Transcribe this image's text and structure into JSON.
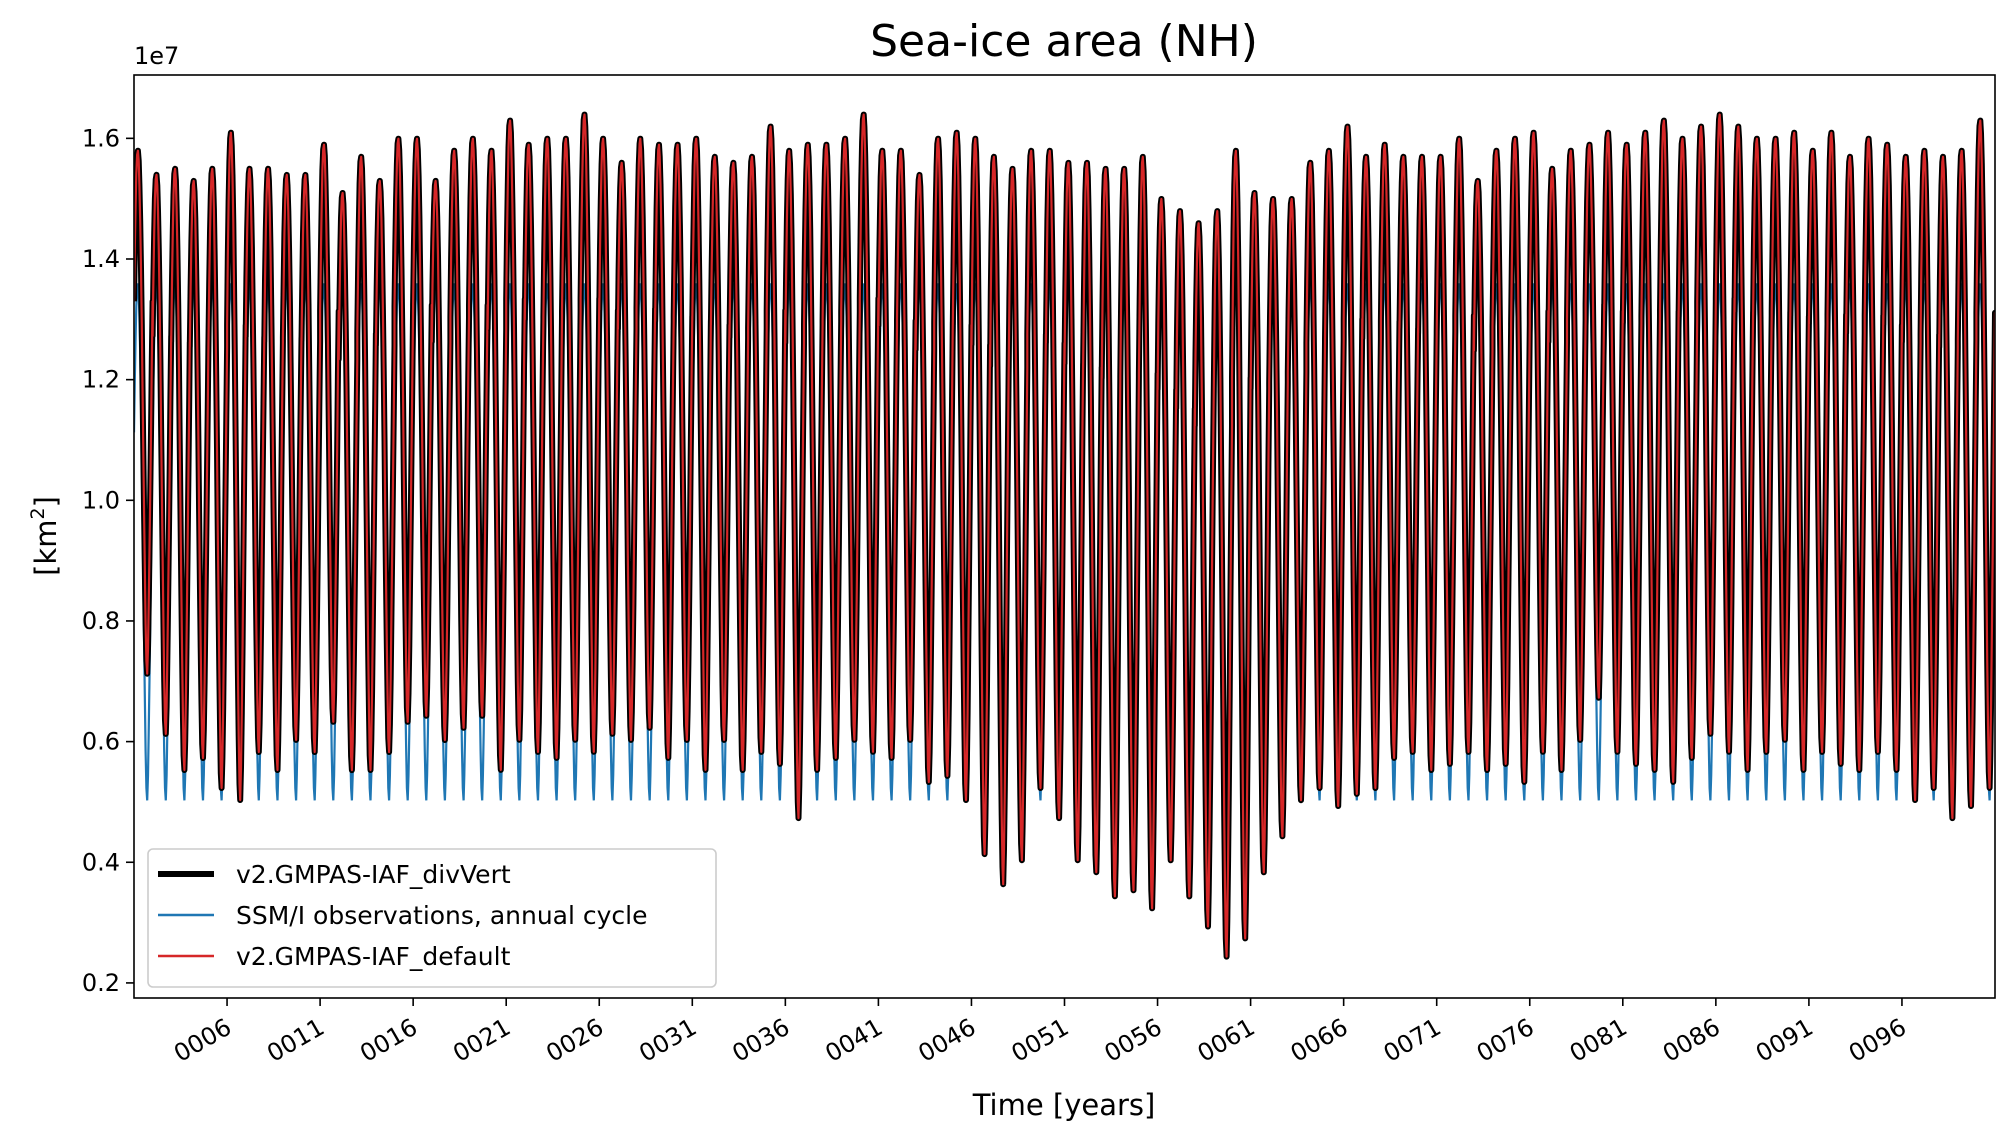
{
  "chart_data": {
    "type": "line",
    "title": "Sea-ice area (NH)",
    "xlabel": "Time [years]",
    "ylabel_prefix": "[km",
    "ylabel_sup": "2",
    "ylabel_suffix": "]",
    "y_offset_label": "1e7",
    "xlim": [
      1,
      101
    ],
    "ylim": [
      0.175,
      1.705
    ],
    "y_ticks": [
      0.2,
      0.4,
      0.6,
      0.8,
      1.0,
      1.2,
      1.4,
      1.6
    ],
    "y_tick_labels": [
      "0.2",
      "0.4",
      "0.6",
      "0.8",
      "1.0",
      "1.2",
      "1.4",
      "1.6"
    ],
    "x_ticks": [
      6,
      11,
      16,
      21,
      26,
      31,
      36,
      41,
      46,
      51,
      56,
      61,
      66,
      71,
      76,
      81,
      86,
      91,
      96
    ],
    "x_tick_labels": [
      "0006",
      "0011",
      "0016",
      "0021",
      "0026",
      "0031",
      "0036",
      "0041",
      "0046",
      "0051",
      "0056",
      "0061",
      "0066",
      "0071",
      "0076",
      "0081",
      "0086",
      "0091",
      "0096"
    ],
    "legend_position": "lower-left",
    "series": [
      {
        "name": "v2.GMPAS-IAF_divVert",
        "color": "#000000",
        "style": "thick",
        "annual_max": [
          1.58,
          1.54,
          1.55,
          1.53,
          1.55,
          1.61,
          1.55,
          1.55,
          1.54,
          1.54,
          1.59,
          1.51,
          1.57,
          1.53,
          1.6,
          1.6,
          1.53,
          1.58,
          1.6,
          1.58,
          1.63,
          1.59,
          1.6,
          1.6,
          1.64,
          1.6,
          1.56,
          1.6,
          1.59,
          1.59,
          1.6,
          1.57,
          1.56,
          1.57,
          1.62,
          1.58,
          1.59,
          1.59,
          1.6,
          1.64,
          1.58,
          1.58,
          1.54,
          1.6,
          1.61,
          1.6,
          1.57,
          1.55,
          1.58,
          1.58,
          1.56,
          1.56,
          1.55,
          1.55,
          1.57,
          1.5,
          1.48,
          1.46,
          1.48,
          1.58,
          1.51,
          1.5,
          1.5,
          1.56,
          1.58,
          1.62,
          1.57,
          1.59,
          1.57,
          1.57,
          1.57,
          1.6,
          1.53,
          1.58,
          1.6,
          1.61,
          1.55,
          1.58,
          1.59,
          1.61,
          1.59,
          1.61,
          1.63,
          1.6,
          1.62,
          1.64,
          1.62,
          1.6,
          1.6,
          1.61,
          1.58,
          1.61,
          1.57,
          1.6,
          1.59,
          1.57,
          1.58,
          1.57,
          1.58,
          1.63,
          1.61,
          1.59
        ],
        "annual_min": [
          0.71,
          0.61,
          0.55,
          0.57,
          0.52,
          0.5,
          0.58,
          0.55,
          0.6,
          0.58,
          0.63,
          0.55,
          0.55,
          0.58,
          0.63,
          0.64,
          0.6,
          0.62,
          0.64,
          0.55,
          0.6,
          0.58,
          0.57,
          0.6,
          0.58,
          0.61,
          0.6,
          0.62,
          0.57,
          0.6,
          0.55,
          0.6,
          0.55,
          0.58,
          0.56,
          0.47,
          0.55,
          0.57,
          0.6,
          0.58,
          0.57,
          0.6,
          0.53,
          0.54,
          0.5,
          0.41,
          0.36,
          0.4,
          0.52,
          0.47,
          0.4,
          0.38,
          0.34,
          0.35,
          0.32,
          0.4,
          0.34,
          0.29,
          0.24,
          0.27,
          0.38,
          0.44,
          0.5,
          0.52,
          0.49,
          0.51,
          0.52,
          0.57,
          0.58,
          0.55,
          0.56,
          0.58,
          0.55,
          0.56,
          0.53,
          0.58,
          0.55,
          0.6,
          0.67,
          0.58,
          0.56,
          0.55,
          0.53,
          0.57,
          0.61,
          0.58,
          0.55,
          0.58,
          0.6,
          0.55,
          0.58,
          0.56,
          0.55,
          0.58,
          0.55,
          0.5,
          0.52,
          0.47,
          0.49,
          0.52,
          0.55
        ],
        "end_value": 1.24
      },
      {
        "name": "SSM/I observations, annual cycle",
        "color": "#1f77b4",
        "style": "thin",
        "annual_max": 1.36,
        "annual_min": 0.5,
        "annual_mean": 1.16
      },
      {
        "name": "v2.GMPAS-IAF_default",
        "color": "#d62728",
        "style": "thin",
        "annual_max_same_as": "v2.GMPAS-IAF_divVert"
      }
    ]
  }
}
